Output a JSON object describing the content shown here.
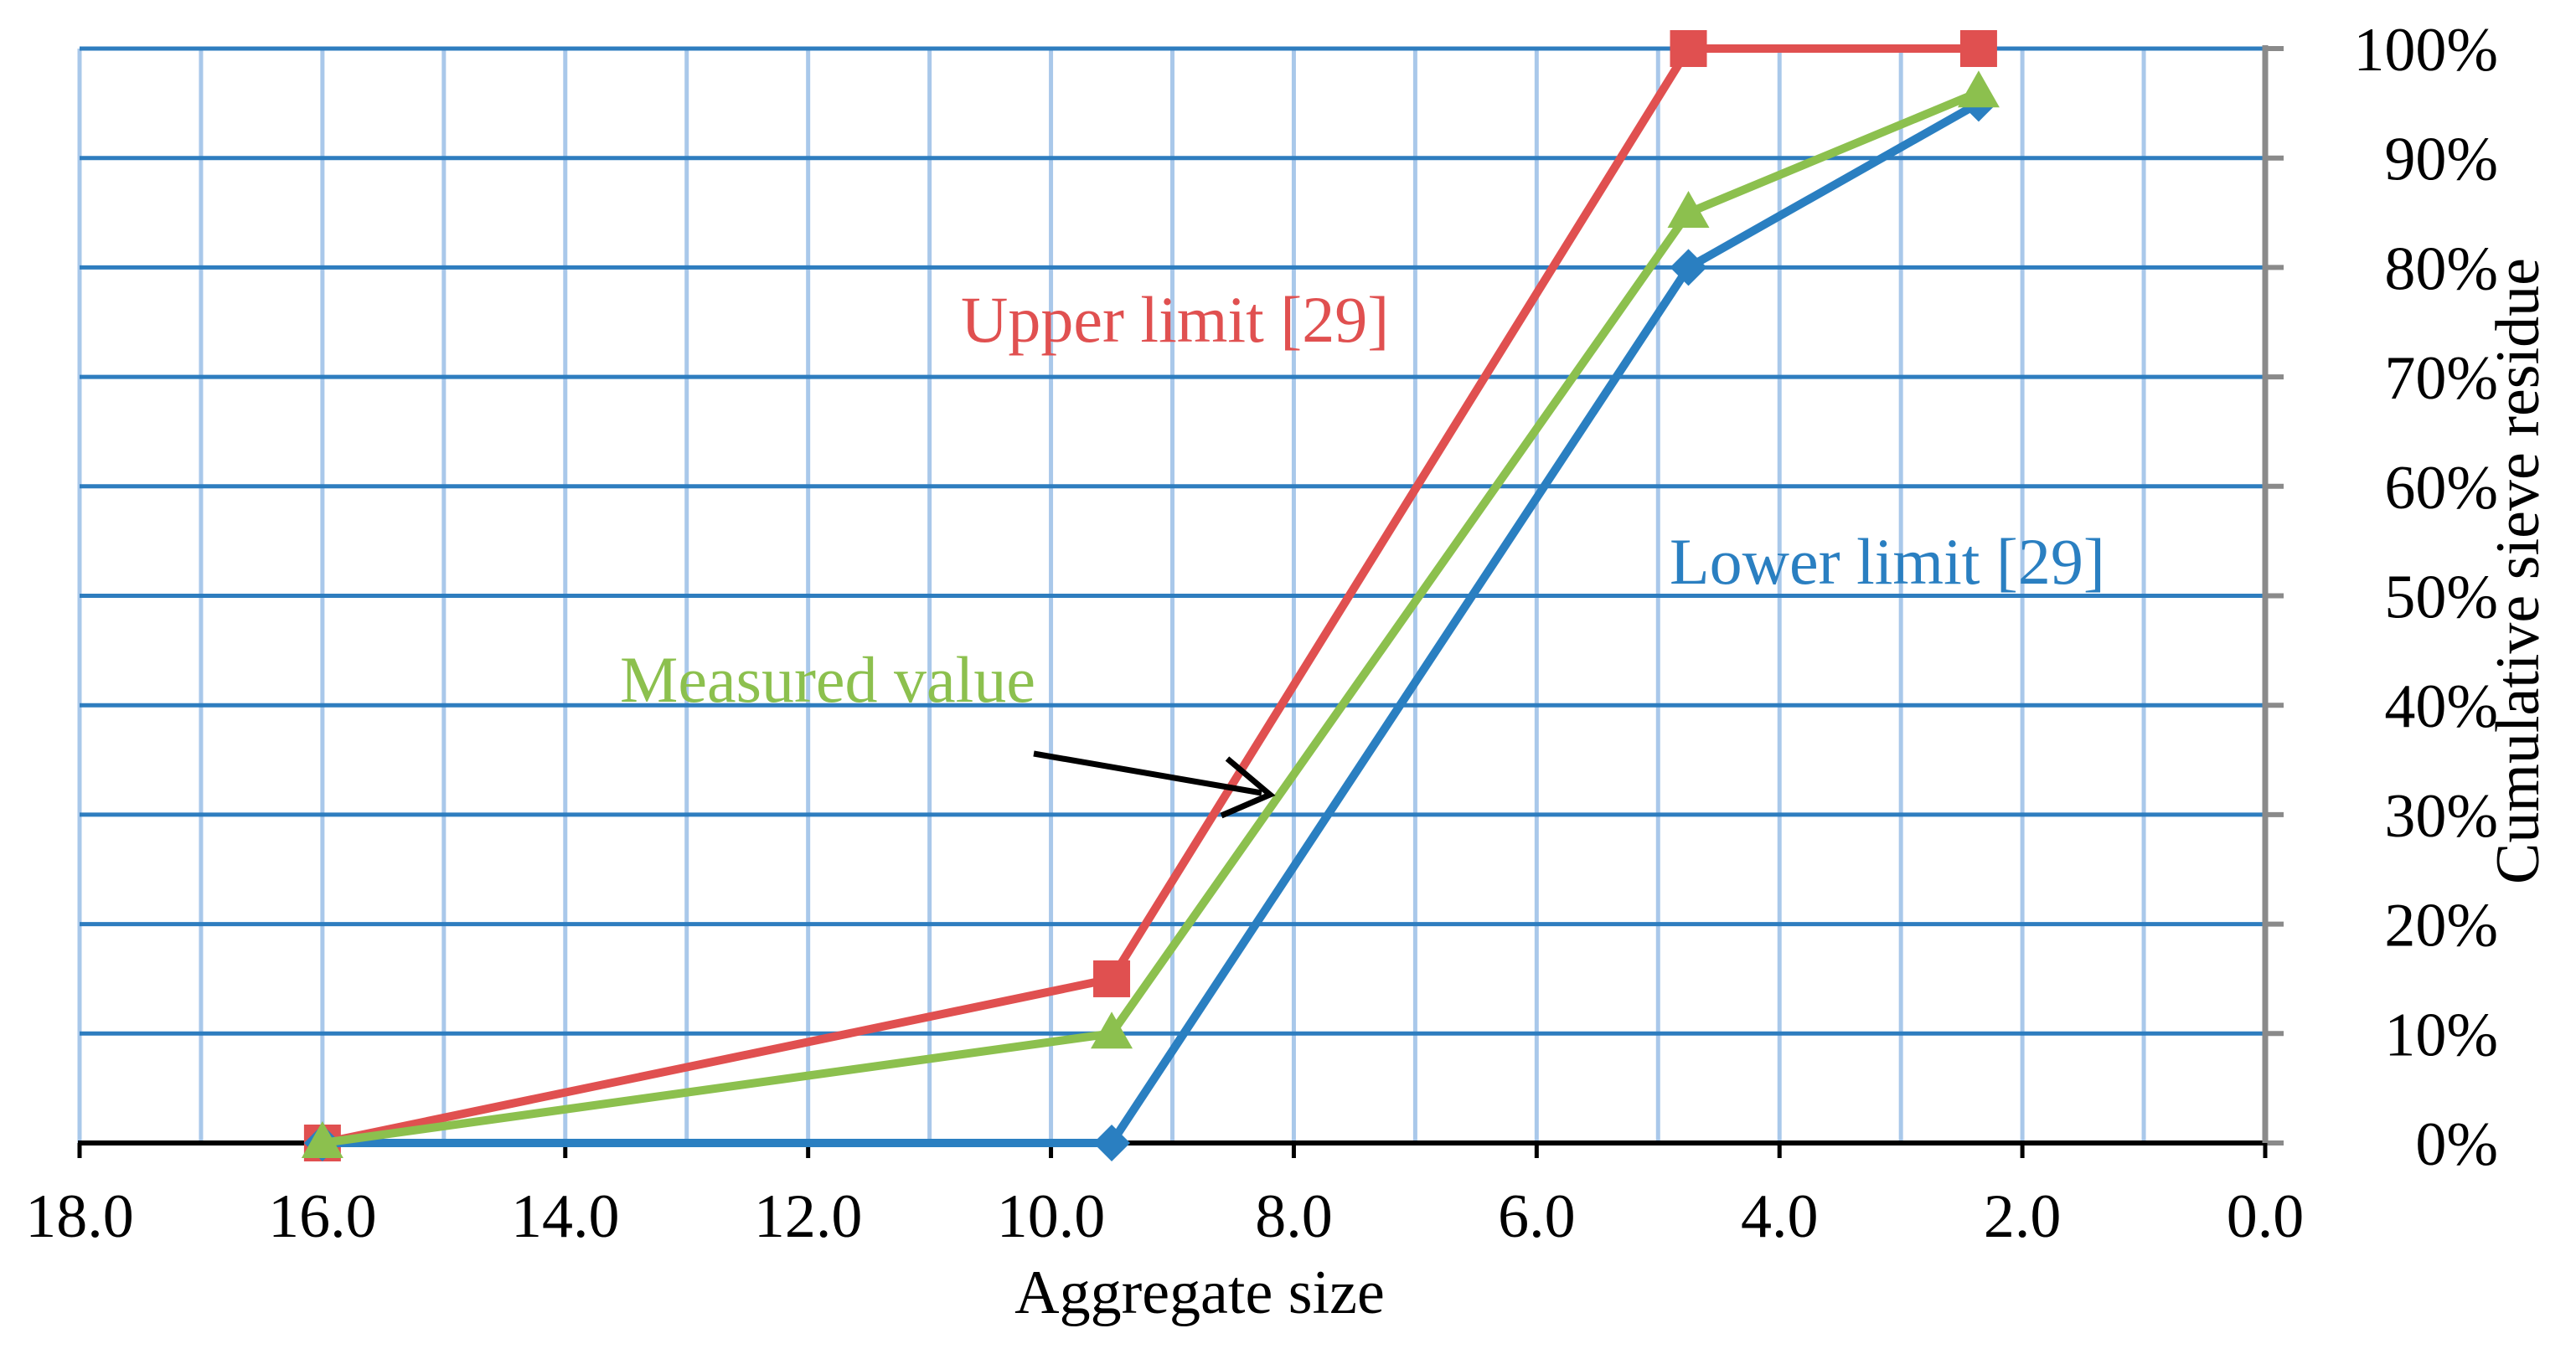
{
  "chart_data": {
    "type": "line",
    "title": "",
    "xlabel": "Aggregate size",
    "ylabel": "Cumulative sieve residue",
    "xlim": [
      18.0,
      0.0
    ],
    "ylim": [
      0,
      100
    ],
    "x_reversed": true,
    "x_ticks": [
      18.0,
      16.0,
      14.0,
      12.0,
      10.0,
      8.0,
      6.0,
      4.0,
      2.0,
      0.0
    ],
    "x_tick_labels": [
      "18.0",
      "16.0",
      "14.0",
      "12.0",
      "10.0",
      "8.0",
      "6.0",
      "4.0",
      "2.0",
      "0.0"
    ],
    "y_ticks": [
      0,
      10,
      20,
      30,
      40,
      50,
      60,
      70,
      80,
      90,
      100
    ],
    "y_tick_labels": [
      "0%",
      "10%",
      "20%",
      "30%",
      "40%",
      "50%",
      "60%",
      "70%",
      "80%",
      "90%",
      "100%"
    ],
    "y_axis_side": "right",
    "grid": true,
    "series": [
      {
        "name": "Upper limit [29]",
        "color": "#e05050",
        "marker": "square",
        "x": [
          16.0,
          9.5,
          4.75,
          2.36
        ],
        "y": [
          0,
          15,
          100,
          100
        ]
      },
      {
        "name": "Lower limit [29]",
        "color": "#2a7fc1",
        "marker": "diamond",
        "x": [
          16.0,
          9.5,
          4.75,
          2.36
        ],
        "y": [
          0,
          0,
          80,
          95
        ]
      },
      {
        "name": "Measured value",
        "color": "#8cc04e",
        "marker": "triangle",
        "x": [
          16.0,
          9.5,
          4.75,
          2.36
        ],
        "y": [
          0,
          10,
          85,
          96
        ]
      }
    ],
    "annotations": [
      {
        "text": "Upper limit [29]",
        "color": "#e05050"
      },
      {
        "text": "Lower limit [29]",
        "color": "#2a7fc1"
      },
      {
        "text": "Measured value",
        "color": "#8cc04e"
      }
    ]
  }
}
